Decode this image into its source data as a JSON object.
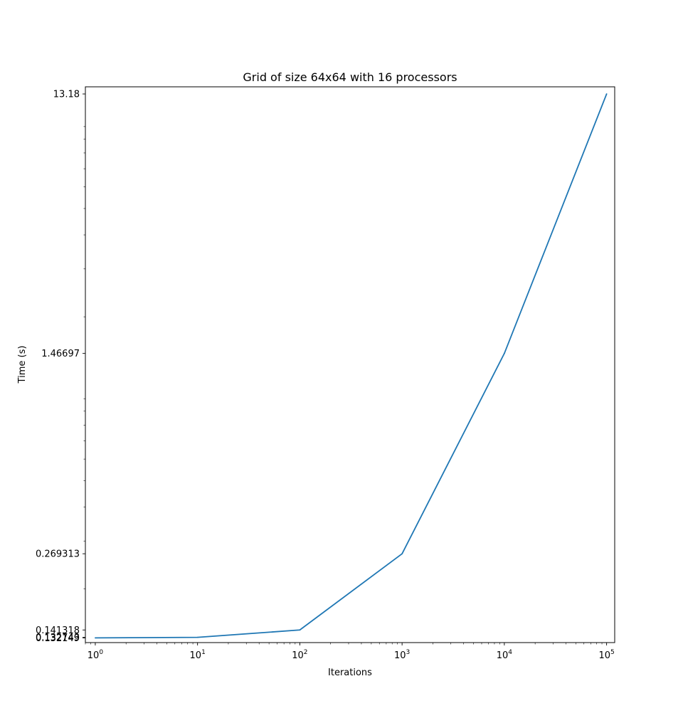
{
  "chart_data": {
    "type": "line",
    "title": "Grid of size 64x64 with 16 processors",
    "xlabel": "Iterations",
    "ylabel": "Time (s)",
    "x_scale": "log",
    "y_scale": "log",
    "grid": false,
    "xlim": [
      0.8,
      120000
    ],
    "ylim": [
      0.127,
      14.0
    ],
    "x_ticks": [
      {
        "value": 1,
        "label_base": "10",
        "label_exp": "0"
      },
      {
        "value": 10,
        "label_base": "10",
        "label_exp": "1"
      },
      {
        "value": 100,
        "label_base": "10",
        "label_exp": "2"
      },
      {
        "value": 1000,
        "label_base": "10",
        "label_exp": "3"
      },
      {
        "value": 10000,
        "label_base": "10",
        "label_exp": "4"
      },
      {
        "value": 100000,
        "label_base": "10",
        "label_exp": "5"
      }
    ],
    "y_ticks": [
      {
        "value": 0.132149,
        "label": "0.132149"
      },
      {
        "value": 0.132743,
        "label": "0.132743"
      },
      {
        "value": 0.141318,
        "label": "0.141318"
      },
      {
        "value": 0.269313,
        "label": "0.269313"
      },
      {
        "value": 1.46697,
        "label": "1.46697"
      },
      {
        "value": 13.18,
        "label": "13.18"
      }
    ],
    "series": [
      {
        "color": "#1f77b4",
        "x": [
          1,
          10,
          100,
          1000,
          10000,
          100000
        ],
        "y": [
          0.132149,
          0.132743,
          0.141318,
          0.269313,
          1.46697,
          13.18
        ]
      }
    ]
  }
}
